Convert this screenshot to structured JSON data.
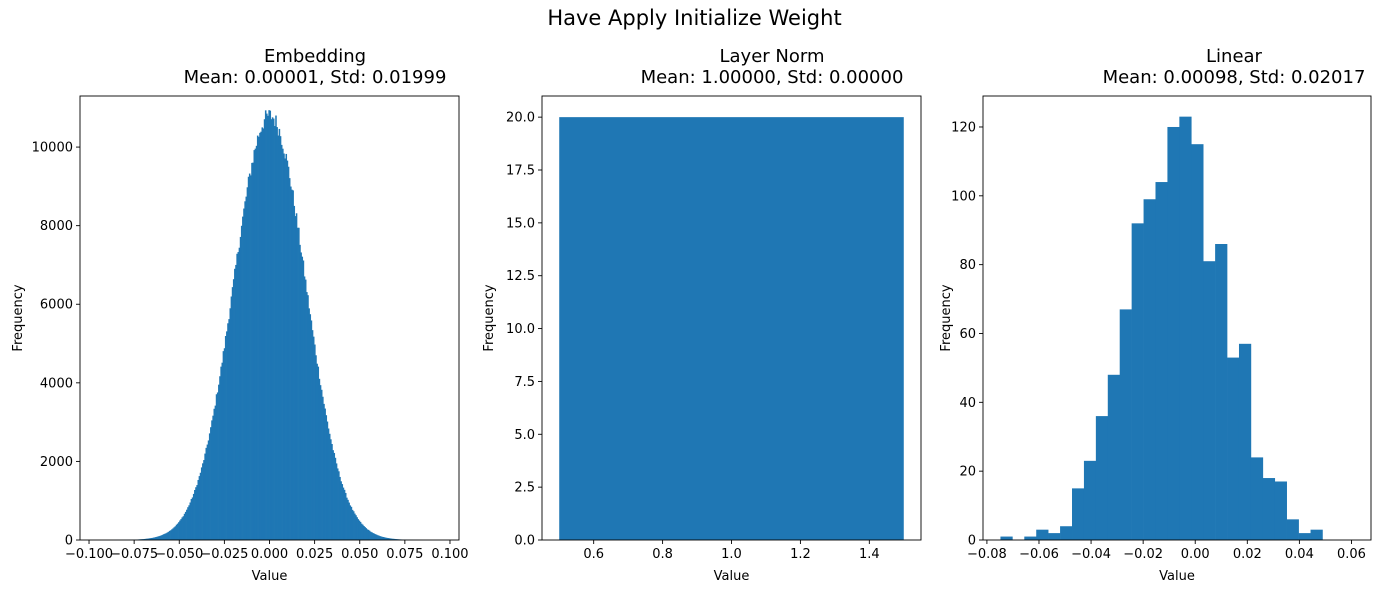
{
  "suptitle": "Have Apply Initialize Weight",
  "panels": [
    {
      "title_line1": "Embedding",
      "title_line2": "Mean: 0.00001, Std: 0.01999"
    },
    {
      "title_line1": "Layer Norm",
      "title_line2": "Mean: 1.00000, Std: 0.00000"
    },
    {
      "title_line1": "Linear",
      "title_line2": "Mean: 0.00098, Std: 0.02017"
    }
  ],
  "colors": {
    "bar": "#1f77b4",
    "axis": "#000000"
  },
  "chart_data": [
    {
      "type": "histogram",
      "title": "Embedding\n          Mean: 0.00001, Std: 0.01999",
      "xlabel": "Value",
      "ylabel": "Frequency",
      "xlim": [
        -0.105,
        0.105
      ],
      "ylim": [
        0,
        11300
      ],
      "xticks": [
        "-0.100",
        "-0.075",
        "-0.050",
        "-0.025",
        "0.000",
        "0.025",
        "0.050",
        "0.075",
        "0.100"
      ],
      "yticks": [
        "0",
        "2000",
        "4000",
        "6000",
        "8000",
        "10000"
      ],
      "distribution": "normal",
      "mean": 1e-05,
      "std": 0.01999,
      "peak_frequency": 10800,
      "x_range": [
        -0.095,
        0.095
      ]
    },
    {
      "type": "histogram",
      "title": "Layer Norm\n          Mean: 1.00000, Std: 0.00000",
      "xlabel": "Value",
      "ylabel": "Frequency",
      "xlim": [
        0.45,
        1.55
      ],
      "ylim": [
        0,
        21
      ],
      "xticks": [
        "0.6",
        "0.8",
        "1.0",
        "1.2",
        "1.4"
      ],
      "yticks": [
        "0.0",
        "2.5",
        "5.0",
        "7.5",
        "10.0",
        "12.5",
        "15.0",
        "17.5",
        "20.0"
      ],
      "bins": [
        {
          "x0": 0.5,
          "x1": 1.5,
          "count": 20
        }
      ]
    },
    {
      "type": "histogram",
      "title": "Linear\n          Mean: 0.00098, Std: 0.02017",
      "xlabel": "Value",
      "ylabel": "Frequency",
      "xlim": [
        -0.0815,
        0.0675
      ],
      "ylim": [
        0,
        129
      ],
      "xticks": [
        "-0.08",
        "-0.06",
        "-0.04",
        "-0.02",
        "0.00",
        "0.02",
        "0.04",
        "0.06"
      ],
      "yticks": [
        "0",
        "20",
        "40",
        "60",
        "80",
        "100",
        "120"
      ],
      "bin_start": -0.0748,
      "bin_width": 0.00458,
      "counts": [
        1,
        0,
        1,
        3,
        2,
        4,
        15,
        23,
        36,
        48,
        67,
        92,
        99,
        104,
        120,
        123,
        115,
        81,
        86,
        53,
        57,
        24,
        18,
        17,
        6,
        2,
        3
      ]
    }
  ]
}
